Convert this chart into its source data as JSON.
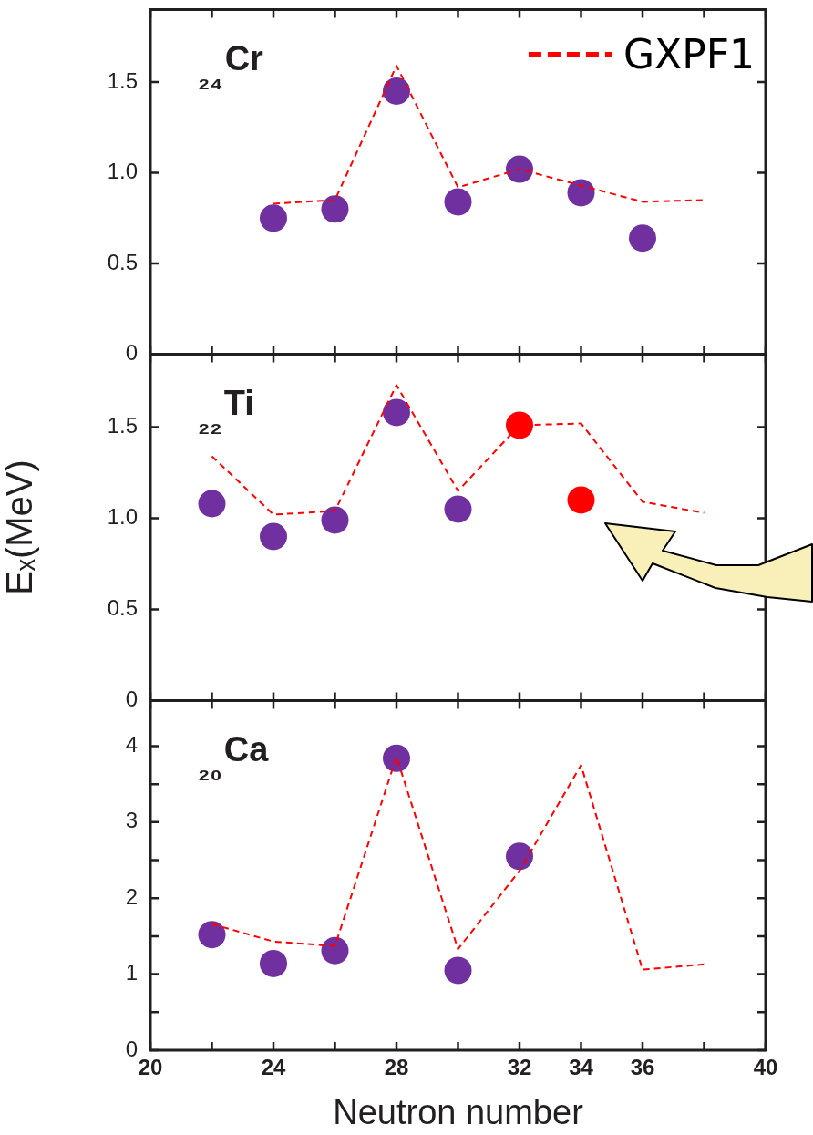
{
  "chart_data": [
    {
      "type": "scatter",
      "annotations": [
        "₂₄Cr"
      ],
      "marker": "circle",
      "legend": "top right",
      "tick_labels": "y",
      "xlim": [
        20,
        40
      ],
      "xticks": [
        20,
        {
          "value": 22,
          "label": null
        },
        24,
        {
          "value": 26,
          "label": null
        },
        28,
        {
          "value": 30,
          "label": null
        },
        32,
        34,
        36,
        {
          "value": 38,
          "label": null
        },
        40
      ],
      "ylim": [
        0,
        1.9
      ],
      "yticks": [
        0,
        0.5,
        {
          "value": 1,
          "label": "1.0"
        },
        1.5
      ],
      "series": [
        {
          "name": "GXPF1",
          "type": "line",
          "marker": "none",
          "line_style": "dashed",
          "color": "#ff0000",
          "x": [
            24,
            26,
            28,
            30,
            32,
            34,
            36,
            38
          ],
          "values": [
            0.83,
            0.85,
            1.59,
            0.92,
            1.02,
            0.93,
            0.84,
            0.85
          ]
        },
        {
          "color": "#7030a0",
          "x": [
            24,
            26,
            28,
            30,
            32,
            34,
            36
          ],
          "values": [
            0.75,
            0.8,
            1.45,
            0.84,
            1.02,
            0.89,
            0.64
          ]
        }
      ]
    },
    {
      "type": "scatter",
      "annotations": [
        "₂₂Ti"
      ],
      "marker": "circle",
      "ylabel": "Eₓ(MeV)",
      "tick_labels": "y",
      "xlim": [
        20,
        40
      ],
      "xticks": [
        20,
        {
          "value": 22,
          "label": null
        },
        24,
        {
          "value": 26,
          "label": null
        },
        28,
        {
          "value": 30,
          "label": null
        },
        32,
        34,
        36,
        {
          "value": 38,
          "label": null
        },
        40
      ],
      "ylim": [
        0,
        1.9
      ],
      "yticks": [
        0,
        0.5,
        {
          "value": 1,
          "label": "1.0"
        },
        1.5
      ],
      "series": [
        {
          "type": "line",
          "marker": "none",
          "line_style": "dashed",
          "color": "#ff0000",
          "x": [
            22,
            24,
            26,
            28,
            30,
            32,
            34,
            36,
            38
          ],
          "values": [
            1.34,
            1.02,
            1.04,
            1.73,
            1.15,
            1.51,
            1.52,
            1.09,
            1.03
          ]
        },
        {
          "color": "#7030a0",
          "x": [
            22,
            24,
            26,
            28,
            30
          ],
          "values": [
            1.08,
            0.9,
            0.99,
            1.58,
            1.05
          ]
        },
        {
          "color": "#ff0000",
          "x": [
            32,
            34
          ],
          "values": [
            1.51,
            1.1
          ]
        }
      ]
    },
    {
      "type": "scatter",
      "annotations": [
        "₂₀Ca"
      ],
      "marker": "circle",
      "xlabel": "Neutron number",
      "xlim": [
        20,
        40
      ],
      "xticks": [
        20,
        {
          "value": 22,
          "label": null
        },
        24,
        {
          "value": 26,
          "label": null
        },
        28,
        {
          "value": 30,
          "label": null
        },
        32,
        34,
        36,
        {
          "value": 38,
          "label": null
        },
        40
      ],
      "ylim": [
        0,
        4.6
      ],
      "yticks": [
        0,
        {
          "value": 0.5,
          "label": null
        },
        1,
        {
          "value": 1.5,
          "label": null
        },
        2,
        {
          "value": 2.5,
          "label": null
        },
        3,
        {
          "value": 3.5,
          "label": null
        },
        4
      ],
      "series": [
        {
          "type": "line",
          "marker": "none",
          "line_style": "dashed",
          "color": "#ff0000",
          "x": [
            22,
            24,
            26,
            28,
            30,
            32,
            34,
            36,
            38
          ],
          "values": [
            1.66,
            1.43,
            1.37,
            3.86,
            1.33,
            2.36,
            3.75,
            1.06,
            1.13
          ]
        },
        {
          "color": "#7030a0",
          "x": [
            22,
            24,
            26,
            28,
            30,
            32
          ],
          "values": [
            1.52,
            1.14,
            1.31,
            3.84,
            1.05,
            2.55
          ]
        }
      ]
    }
  ]
}
